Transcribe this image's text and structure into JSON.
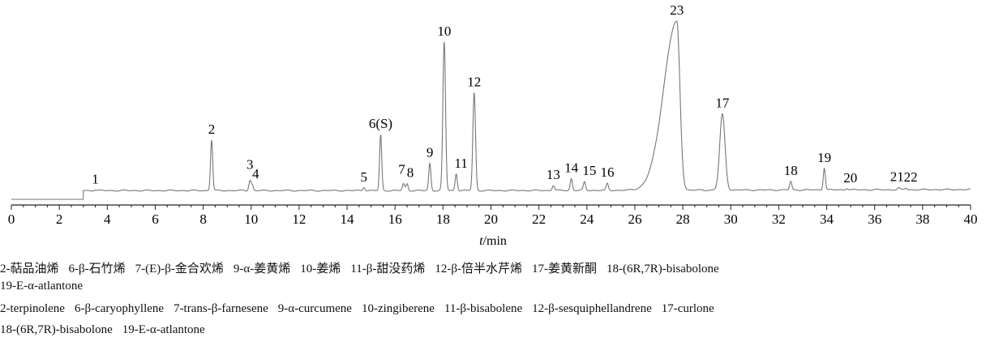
{
  "chart_data": {
    "type": "line",
    "title": "",
    "xlabel": "t/min",
    "ylabel": "",
    "xlim": [
      0,
      40
    ],
    "x_ticks": [
      "0",
      "2",
      "4",
      "6",
      "8",
      "10",
      "12",
      "14",
      "16",
      "18",
      "20",
      "22",
      "24",
      "26",
      "28",
      "30",
      "32",
      "34",
      "36",
      "38",
      "40"
    ],
    "baseline_start": 3.0,
    "grid": false,
    "line_color": "#777777",
    "axis_color": "#222222",
    "peaks": [
      {
        "label": "1",
        "rt": 3.5,
        "height": 0.005
      },
      {
        "label": "2",
        "rt": 8.35,
        "height": 0.3
      },
      {
        "label": "3",
        "rt": 9.95,
        "height": 0.06
      },
      {
        "label": "4",
        "rt": 10.05,
        "height": 0.03
      },
      {
        "label": "5",
        "rt": 14.7,
        "height": 0.02
      },
      {
        "label": "6(S)",
        "rt": 15.4,
        "height": 0.33
      },
      {
        "label": "7",
        "rt": 16.35,
        "height": 0.04
      },
      {
        "label": "8",
        "rt": 16.5,
        "height": 0.04
      },
      {
        "label": "9",
        "rt": 17.45,
        "height": 0.16
      },
      {
        "label": "10",
        "rt": 18.05,
        "height": 0.88
      },
      {
        "label": "11",
        "rt": 18.55,
        "height": 0.1
      },
      {
        "label": "12",
        "rt": 19.3,
        "height": 0.58
      },
      {
        "label": "13",
        "rt": 22.6,
        "height": 0.03
      },
      {
        "label": "14",
        "rt": 23.35,
        "height": 0.07
      },
      {
        "label": "15",
        "rt": 23.9,
        "height": 0.05
      },
      {
        "label": "16",
        "rt": 24.85,
        "height": 0.04
      },
      {
        "label": "23",
        "rt": 27.75,
        "height": 1.0
      },
      {
        "label": "17",
        "rt": 29.65,
        "height": 0.45
      },
      {
        "label": "18",
        "rt": 32.5,
        "height": 0.05
      },
      {
        "label": "19",
        "rt": 33.9,
        "height": 0.13
      },
      {
        "label": "20",
        "rt": 34.85,
        "height": 0.01
      },
      {
        "label": "21",
        "rt": 37.0,
        "height": 0.01
      },
      {
        "label": "22",
        "rt": 37.3,
        "height": 0.01
      }
    ]
  },
  "captions": {
    "cn": [
      "2-萜品油烯",
      "6-β-石竹烯",
      "7-(E)-β-金合欢烯",
      "9-α-姜黄烯",
      "10-姜烯",
      "11-β-甜没药烯",
      "12-β-倍半水芹烯",
      "17-姜黄新酮",
      "18-(6R,7R)-bisabolone"
    ],
    "cn_line2": "19-E-α-atlantone",
    "en": [
      "2-terpinolene",
      "6-β-caryophyllene",
      "7-trans-β-farnesene",
      "9-α-curcumene",
      "10-zingiberene",
      "11-β-bisabolene",
      "12-β-sesquiphellandrene",
      "17-curlone"
    ],
    "en_line2": [
      "18-(6R,7R)-bisabolone",
      "19-E-α-atlantone"
    ]
  }
}
